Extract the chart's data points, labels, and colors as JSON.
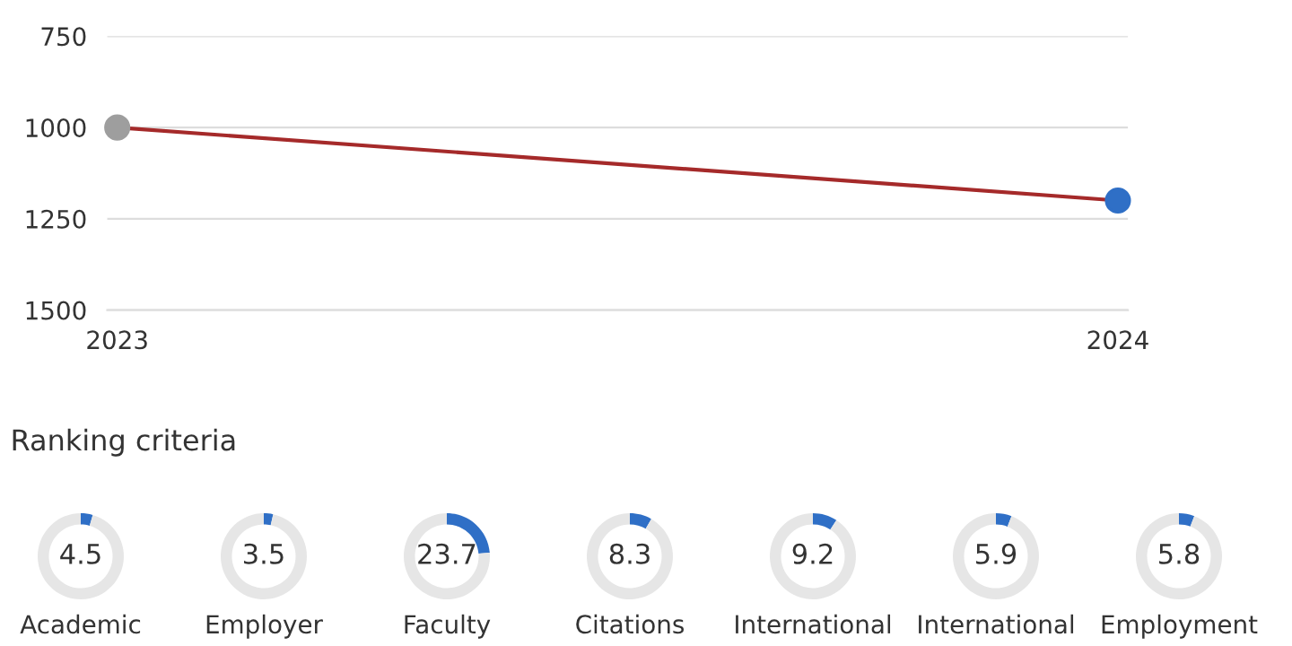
{
  "chart_data": [
    {
      "type": "line",
      "x": [
        2023,
        2024
      ],
      "xlim": [
        2022.99,
        2024.01
      ],
      "xticks": [
        2023,
        2024
      ],
      "ylim": [
        1500,
        750
      ],
      "yticks": [
        750,
        1000,
        1250,
        1500
      ],
      "grid": "y",
      "marker": "circle",
      "series": [
        {
          "color": "#a52a2a",
          "colors": [
            "#9e9e9e",
            "#2f6fc6"
          ],
          "values": [
            1000,
            1200
          ]
        }
      ]
    },
    {
      "type": "donut",
      "annotations": [
        "Ranking criteria"
      ],
      "title": "Academic",
      "categories": [
        null,
        null
      ],
      "values": [
        4.5,
        95.5
      ],
      "colors": [
        "#2f6fc6",
        "#e6e6e6"
      ],
      "value_labels": [
        "4.5",
        null
      ]
    },
    {
      "type": "donut",
      "title": "Employer",
      "categories": [
        null,
        null
      ],
      "values": [
        3.5,
        96.5
      ],
      "colors": [
        "#2f6fc6",
        "#e6e6e6"
      ],
      "value_labels": [
        "3.5",
        null
      ]
    },
    {
      "type": "donut",
      "title": "Faculty",
      "categories": [
        null,
        null
      ],
      "values": [
        23.7,
        76.3
      ],
      "colors": [
        "#2f6fc6",
        "#e6e6e6"
      ],
      "value_labels": [
        "23.7",
        null
      ]
    },
    {
      "type": "donut",
      "title": "Citations",
      "categories": [
        null,
        null
      ],
      "values": [
        8.3,
        91.7
      ],
      "colors": [
        "#2f6fc6",
        "#e6e6e6"
      ],
      "value_labels": [
        "8.3",
        null
      ]
    },
    {
      "type": "donut",
      "title": "International",
      "categories": [
        null,
        null
      ],
      "values": [
        9.2,
        90.8
      ],
      "colors": [
        "#2f6fc6",
        "#e6e6e6"
      ],
      "value_labels": [
        "9.2",
        null
      ]
    },
    {
      "type": "donut",
      "title": "International",
      "categories": [
        null,
        null
      ],
      "values": [
        5.9,
        94.1
      ],
      "colors": [
        "#2f6fc6",
        "#e6e6e6"
      ],
      "value_labels": [
        "5.9",
        null
      ]
    },
    {
      "type": "donut",
      "title": "Employment",
      "categories": [
        null,
        null
      ],
      "values": [
        5.8,
        94.2
      ],
      "colors": [
        "#2f6fc6",
        "#e6e6e6"
      ],
      "value_labels": [
        "5.8",
        null
      ]
    }
  ]
}
